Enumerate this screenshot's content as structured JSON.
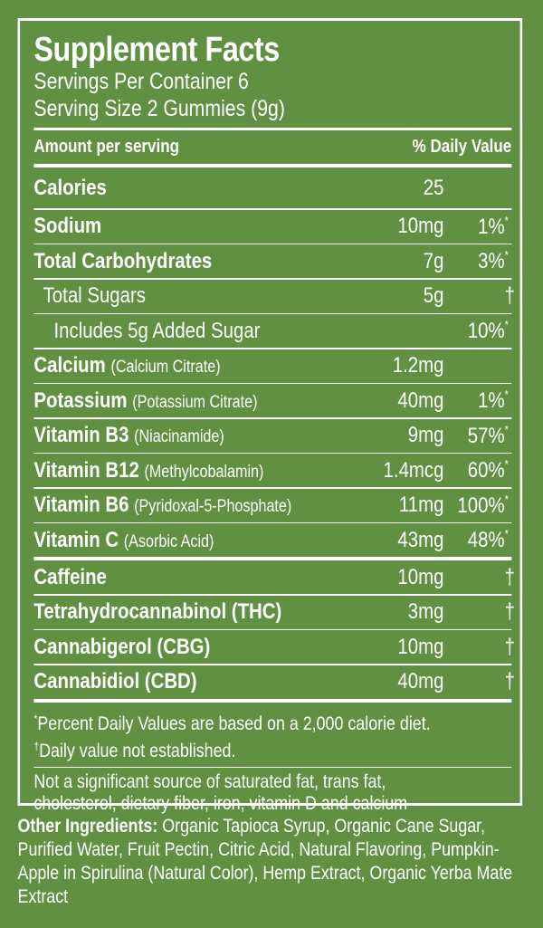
{
  "title": "Supplement Facts",
  "servings_per_container": "Servings Per Container 6",
  "serving_size": "Serving Size 2 Gummies (9g)",
  "header": {
    "amount": "Amount per serving",
    "daily_value": "% Daily Value"
  },
  "rows": [
    {
      "name": "Calories",
      "paren": "",
      "amount": "25",
      "dv": "",
      "mark": "",
      "indent": 0,
      "bold": true
    },
    {
      "name": "Sodium",
      "paren": "",
      "amount": "10mg",
      "dv": "1%",
      "mark": "*",
      "indent": 0,
      "bold": true
    },
    {
      "name": "Total Carbohydrates",
      "paren": "",
      "amount": "7g",
      "dv": "3%",
      "mark": "*",
      "indent": 0,
      "bold": true
    },
    {
      "name": "Total Sugars",
      "paren": "",
      "amount": "5g",
      "dv": "",
      "mark": "†",
      "indent": 1,
      "bold": false
    },
    {
      "name": "Includes 5g Added Sugar",
      "paren": "",
      "amount": "",
      "dv": "10%",
      "mark": "*",
      "indent": 2,
      "bold": false
    },
    {
      "name": "Calcium",
      "paren": "(Calcium Citrate)",
      "amount": "1.2mg",
      "dv": "",
      "mark": "",
      "indent": 0,
      "bold": true
    },
    {
      "name": "Potassium",
      "paren": "(Potassium Citrate)",
      "amount": "40mg",
      "dv": "1%",
      "mark": "*",
      "indent": 0,
      "bold": true
    },
    {
      "name": "Vitamin B3",
      "paren": "(Niacinamide)",
      "amount": "9mg",
      "dv": "57%",
      "mark": "*",
      "indent": 0,
      "bold": true
    },
    {
      "name": "Vitamin B12",
      "paren": "(Methylcobalamin)",
      "amount": "1.4mcg",
      "dv": "60%",
      "mark": "*",
      "indent": 0,
      "bold": true
    },
    {
      "name": "Vitamin B6",
      "paren": "(Pyridoxal-5-Phosphate)",
      "amount": "11mg",
      "dv": "100%",
      "mark": "*",
      "indent": 0,
      "bold": true
    },
    {
      "name": "Vitamin C",
      "paren": "(Asorbic Acid)",
      "amount": "43mg",
      "dv": "48%",
      "mark": "*",
      "indent": 0,
      "bold": true
    },
    {
      "name": "Caffeine",
      "paren": "",
      "amount": "10mg",
      "dv": "",
      "mark": "†",
      "indent": 0,
      "bold": true,
      "thick_before": true
    },
    {
      "name": "Tetrahydrocannabinol (THC)",
      "paren": "",
      "amount": "3mg",
      "dv": "",
      "mark": "†",
      "indent": 0,
      "bold": true
    },
    {
      "name": "Cannabigerol (CBG)",
      "paren": "",
      "amount": "10mg",
      "dv": "",
      "mark": "†",
      "indent": 0,
      "bold": true
    },
    {
      "name": "Cannabidiol (CBD)",
      "paren": "",
      "amount": "40mg",
      "dv": "",
      "mark": "†",
      "indent": 0,
      "bold": true
    }
  ],
  "footnotes": {
    "percent_mark": "*",
    "percent": "Percent Daily Values are based on a 2,000 calorie diet.",
    "dagger_mark": "†",
    "dagger": "Daily value not established."
  },
  "not_significant": "Not a significant source of saturated fat, trans fat, cholesterol, dietary fiber, iron, vitamin D and calcium",
  "other_ingredients": {
    "label": "Other Ingredients:",
    "text": " Organic Tapioca Syrup, Organic Cane Sugar, Purified Water, Fruit Pectin, Citric Acid, Natural Flavoring, Pumpkin-Apple in Spirulina (Natural Color), Hemp Extract, Organic Yerba Mate Extract"
  },
  "colors": {
    "background": "#629042",
    "text": "#ffffff"
  }
}
